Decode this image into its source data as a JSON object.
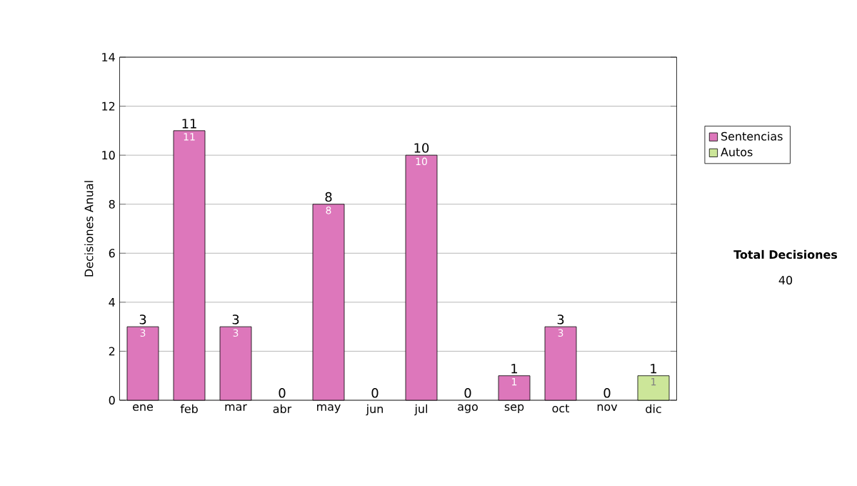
{
  "chart_data": {
    "type": "bar",
    "stacked": true,
    "ylabel": "Decisiones Anual",
    "categories": [
      "ene",
      "feb",
      "mar",
      "abr",
      "may",
      "jun",
      "jul",
      "ago",
      "sep",
      "oct",
      "nov",
      "dic"
    ],
    "series": [
      {
        "name": "Sentencias",
        "color": "#dd77bb",
        "values": [
          3,
          11,
          3,
          0,
          8,
          0,
          10,
          0,
          1,
          3,
          0,
          0
        ],
        "value_labels": [
          "3",
          "11",
          "3",
          null,
          "8",
          null,
          "10",
          null,
          "1",
          "3",
          null,
          null
        ]
      },
      {
        "name": "Autos",
        "color": "#cce699",
        "values": [
          0,
          0,
          0,
          0,
          0,
          0,
          0,
          0,
          0,
          0,
          0,
          1
        ],
        "value_labels": [
          null,
          null,
          null,
          null,
          null,
          null,
          null,
          null,
          null,
          null,
          null,
          "1"
        ]
      }
    ],
    "totals": [
      "3",
      "11",
      "3",
      "0",
      "8",
      "0",
      "10",
      "0",
      "1",
      "3",
      "0",
      "1"
    ],
    "ylim": [
      0,
      14
    ],
    "yticks": [
      0,
      2,
      4,
      6,
      8,
      10,
      12,
      14
    ],
    "grid": "y",
    "legend": "right",
    "annotations": [
      "**Total Decisiones**",
      "40"
    ]
  }
}
